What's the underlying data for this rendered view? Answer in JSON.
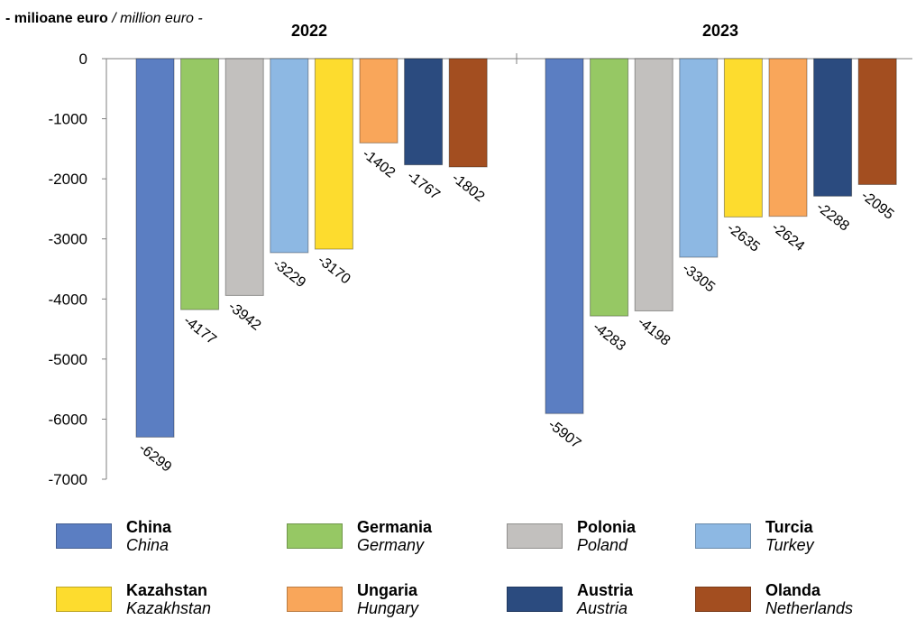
{
  "unit": {
    "ro": "- milioane euro",
    "en": "/ million euro -"
  },
  "chart_data": {
    "type": "bar",
    "groups": [
      "2022",
      "2023"
    ],
    "ylim": [
      -7000,
      0
    ],
    "yticks": [
      "0",
      "-1000",
      "-2000",
      "-3000",
      "-4000",
      "-5000",
      "-6000",
      "-7000"
    ],
    "grid": false,
    "legend_position": "bottom",
    "series": [
      {
        "name": "China",
        "name_en": "China",
        "color": "#5B7EC2",
        "values": [
          -6299,
          -5907
        ]
      },
      {
        "name": "Germania",
        "name_en": "Germany",
        "color": "#96C864",
        "values": [
          -4177,
          -4283
        ]
      },
      {
        "name": "Polonia",
        "name_en": "Poland",
        "color": "#C2C0BE",
        "values": [
          -3942,
          -4198
        ]
      },
      {
        "name": "Turcia",
        "name_en": "Turkey",
        "color": "#8DB8E3",
        "values": [
          -3229,
          -3305
        ]
      },
      {
        "name": "Kazahstan",
        "name_en": "Kazakhstan",
        "color": "#FDDC2E",
        "values": [
          -3170,
          -2635
        ]
      },
      {
        "name": "Ungaria",
        "name_en": "Hungary",
        "color": "#F9A65A",
        "values": [
          -1402,
          -2624
        ]
      },
      {
        "name": "Austria",
        "name_en": "Austria",
        "color": "#2B4B7F",
        "values": [
          -1767,
          -2288
        ]
      },
      {
        "name": "Olanda",
        "name_en": "Netherlands",
        "color": "#A34E20",
        "values": [
          -1802,
          -2095
        ]
      }
    ]
  }
}
